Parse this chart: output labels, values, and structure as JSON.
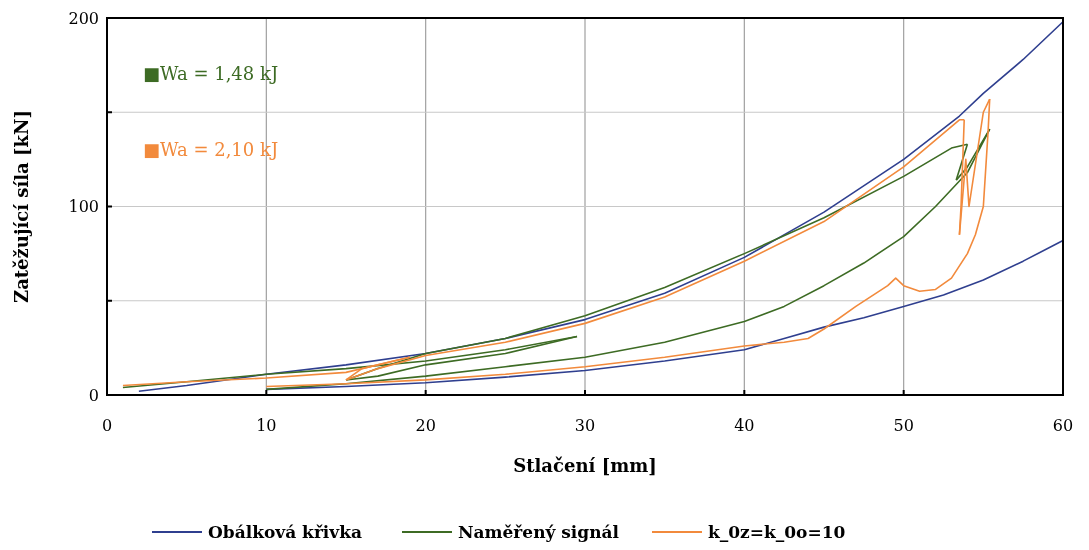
{
  "chart_data": {
    "type": "line",
    "xlabel": "Stlačení [mm]",
    "ylabel": "Zatěžující síla [kN]",
    "xlim": [
      0,
      60
    ],
    "ylim": [
      0,
      200
    ],
    "xticks": [
      0,
      10,
      20,
      30,
      40,
      50,
      60
    ],
    "yticks": [
      0,
      {
        "value": 50,
        "label": null
      },
      100,
      {
        "value": 150,
        "label": null
      },
      200
    ],
    "grid": true,
    "legend": "bottom",
    "marker": "none",
    "line_style": "solid",
    "annotations": [
      "■Wa = 1,48 kJ",
      "■Wa = 2,10 kJ"
    ],
    "series": [
      {
        "name": "Obálková křivka",
        "color": "#2f3f8f",
        "x": [
          2,
          5,
          10,
          15,
          20,
          25,
          30,
          35,
          40,
          45,
          50,
          53.5,
          55,
          57.5,
          60
        ],
        "values": [
          2,
          5,
          11,
          16,
          22,
          30,
          40,
          54,
          73,
          97,
          125,
          148,
          160,
          178,
          198
        ]
      },
      {
        "color": "#2f3f8f",
        "x": [
          60,
          57.5,
          55,
          52.5,
          50,
          47.5,
          45,
          42.5,
          40,
          35,
          30,
          25,
          20,
          15,
          10
        ],
        "values": [
          82,
          71,
          61,
          53,
          47,
          41,
          36,
          30,
          24,
          18,
          13,
          9.5,
          6.5,
          4.5,
          3
        ]
      },
      {
        "name": "Naměřený signál",
        "color": "#3d6b24",
        "x": [
          1,
          5,
          10,
          15,
          20,
          25,
          29.5
        ],
        "values": [
          4,
          7,
          11,
          14,
          18,
          24,
          31
        ]
      },
      {
        "color": "#3d6b24",
        "x": [
          29.5,
          25,
          20,
          17,
          15
        ],
        "values": [
          31,
          22,
          16,
          10,
          8
        ]
      },
      {
        "color": "#3d6b24",
        "x": [
          15,
          17,
          20,
          25,
          30,
          35,
          40,
          45,
          50,
          53,
          54
        ],
        "values": [
          8,
          14,
          22,
          30,
          42,
          57,
          75,
          94,
          116,
          131,
          133
        ]
      },
      {
        "color": "#3d6b24",
        "x": [
          54,
          53.3
        ],
        "values": [
          133,
          114
        ]
      },
      {
        "color": "#3d6b24",
        "x": [
          53.3,
          54,
          55.4
        ],
        "values": [
          114,
          121,
          141
        ]
      },
      {
        "color": "#3d6b24",
        "x": [
          55.4,
          54,
          52,
          50,
          47.5,
          45,
          42.5,
          40,
          35,
          30,
          25,
          20,
          15,
          10
        ],
        "values": [
          141,
          118,
          100,
          84,
          70,
          58,
          47,
          39,
          28,
          20,
          15,
          10,
          6,
          3
        ]
      },
      {
        "name": "k_0z=k_0o=10",
        "color": "#f28a3c",
        "x": [
          1,
          5,
          10,
          15,
          19
        ],
        "values": [
          5,
          7,
          9,
          12,
          20
        ]
      },
      {
        "color": "#f28a3c",
        "x": [
          19,
          16,
          15
        ],
        "values": [
          20,
          14,
          8
        ]
      },
      {
        "color": "#f28a3c",
        "x": [
          15,
          17,
          20,
          25,
          30,
          35,
          40,
          45,
          50,
          53.5,
          53.8
        ],
        "values": [
          8,
          14,
          21,
          28,
          38,
          52,
          71,
          92,
          121,
          146,
          146
        ]
      },
      {
        "color": "#f28a3c",
        "x": [
          53.8,
          53.6,
          53.5
        ],
        "values": [
          146,
          100,
          85
        ]
      },
      {
        "color": "#f28a3c",
        "x": [
          53.5,
          53.9,
          54.1,
          55,
          55.4
        ],
        "values": [
          85,
          125,
          100,
          150,
          157
        ]
      },
      {
        "color": "#f28a3c",
        "x": [
          55.4,
          55.3,
          55,
          54.5,
          54,
          53,
          52,
          51,
          50,
          49.5,
          49,
          47,
          45,
          44,
          42.5,
          40,
          35,
          30,
          25,
          20,
          15,
          10
        ],
        "values": [
          157,
          140,
          100,
          85,
          75,
          62,
          56,
          55,
          58,
          62,
          58,
          47,
          35,
          30,
          28,
          26,
          20,
          15,
          11,
          8,
          6,
          4.5
        ]
      }
    ]
  }
}
